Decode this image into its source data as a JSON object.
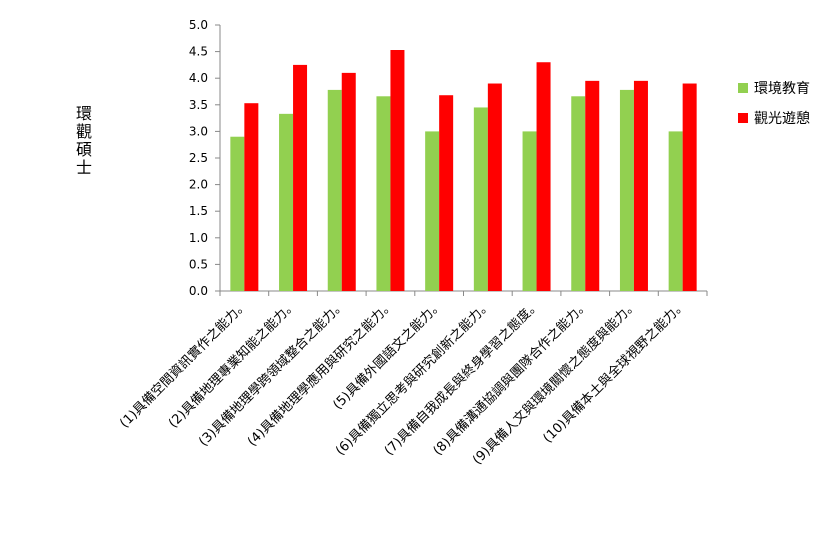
{
  "chart_data": {
    "type": "bar",
    "y_label": "環觀碩士",
    "categories": [
      "(1)具備空間資訊實作之能力。",
      "(2)具備地理專業知能之能力。",
      "(3)具備地理學跨領域整合之能力。",
      "(4)具備地理學應用與研究之能力。",
      "(5)具備外國語文之能力。",
      "(6)具備獨立思考與研究創新之能力。",
      "(7)具備自我成長與終身學習之態度。",
      "(8)具備溝通協調與團隊合作之能力。",
      "(9)具備人文與環境關懷之態度與能力。",
      "(10)具備本土與全球視野之能力。"
    ],
    "series": [
      {
        "name": "環境教育",
        "color": "#92d050",
        "values": [
          2.9,
          3.33,
          3.78,
          3.66,
          3.0,
          3.45,
          3.0,
          3.66,
          3.78,
          3.0
        ]
      },
      {
        "name": "觀光遊憩",
        "color": "#ff0000",
        "values": [
          3.53,
          4.25,
          4.1,
          4.53,
          3.68,
          3.9,
          4.3,
          3.95,
          3.95,
          3.9
        ]
      }
    ],
    "ylim": [
      0,
      5
    ],
    "yticks": [
      {
        "value": 0,
        "label": "0.0"
      },
      {
        "value": 0.5,
        "label": "0.5"
      },
      {
        "value": 1,
        "label": "1.0"
      },
      {
        "value": 1.5,
        "label": "1.5"
      },
      {
        "value": 2,
        "label": "2.0"
      },
      {
        "value": 2.5,
        "label": "2.5"
      },
      {
        "value": 3,
        "label": "3.0"
      },
      {
        "value": 3.5,
        "label": "3.5"
      },
      {
        "value": 4,
        "label": "4.0"
      },
      {
        "value": 4.5,
        "label": "4.5"
      },
      {
        "value": 5,
        "label": "5.0"
      }
    ],
    "grid": false,
    "legend": "right"
  }
}
